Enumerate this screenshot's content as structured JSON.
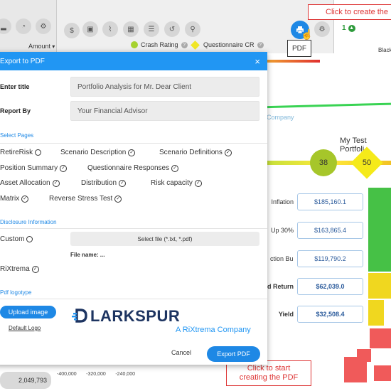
{
  "toolbar": {
    "amount_label": "Amount",
    "crash_rating": "Crash Rating",
    "questionnaire_cr": "Questionnaire CR",
    "pdf_tooltip": "PDF",
    "score_badge": "1"
  },
  "callouts": {
    "top": "Click to create the",
    "bottom_line1": "Click to start",
    "bottom_line2": "creating the PDF"
  },
  "background": {
    "black_label": "Black",
    "company_text": "Company",
    "chart_title": "My Test Portfoli",
    "circle_value": "38",
    "diamond_value": "50",
    "rows": [
      {
        "label": "Inflation",
        "value": "$185,160.1",
        "bold": false
      },
      {
        "label": "Up 30%",
        "value": "$163,865.4",
        "bold": false
      },
      {
        "label": "ction Bull",
        "value": "$119,790.2",
        "bold": false
      },
      {
        "label": "d Return",
        "value": "$62,039.0",
        "bold": true
      },
      {
        "label": "Yield",
        "value": "$32,508.4",
        "bold": true
      }
    ],
    "axis": [
      "-400,000",
      "-320,000",
      "-240,000"
    ],
    "total": "2,049,793"
  },
  "modal": {
    "title": "Export to PDF",
    "close": "×",
    "enter_title_label": "Enter title",
    "enter_title_value": "Portfolio Analysis for Mr. Dear Client",
    "report_by_label": "Report By",
    "report_by_value": "Your Financial Advisor",
    "select_pages_title": "Select Pages",
    "pages": [
      {
        "label": "RetireRisk",
        "checked": false
      },
      {
        "label": "Scenario Description",
        "checked": true
      },
      {
        "label": "Scenario Definitions",
        "checked": true
      },
      {
        "label": "Position Summary",
        "checked": true
      },
      {
        "label": "Questionnaire Responses",
        "checked": true
      },
      {
        "label": "Asset Allocation",
        "checked": true
      },
      {
        "label": "Distribution",
        "checked": true
      },
      {
        "label": "Risk capacity",
        "checked": true
      },
      {
        "label": "Matrix",
        "checked": true
      },
      {
        "label": "Reverse Stress Test",
        "checked": true
      }
    ],
    "disclosure_title": "Disclosure Information",
    "custom_label": "Custom",
    "select_file": "Select file (*.txt, *.pdf)",
    "file_name": "File name: ...",
    "rixtrema_label": "RiXtrema",
    "logotype_title": "Pdf logotype",
    "upload_image": "Upload image",
    "default_logo": "Default Logo",
    "logo_main": "LARKSPUR",
    "logo_sub": "A RiXtrema Company",
    "cancel": "Cancel",
    "export": "Export PDF"
  },
  "colors": {
    "accent": "#1e88e5",
    "callout": "#d33333",
    "brand_navy": "#1d3461"
  }
}
